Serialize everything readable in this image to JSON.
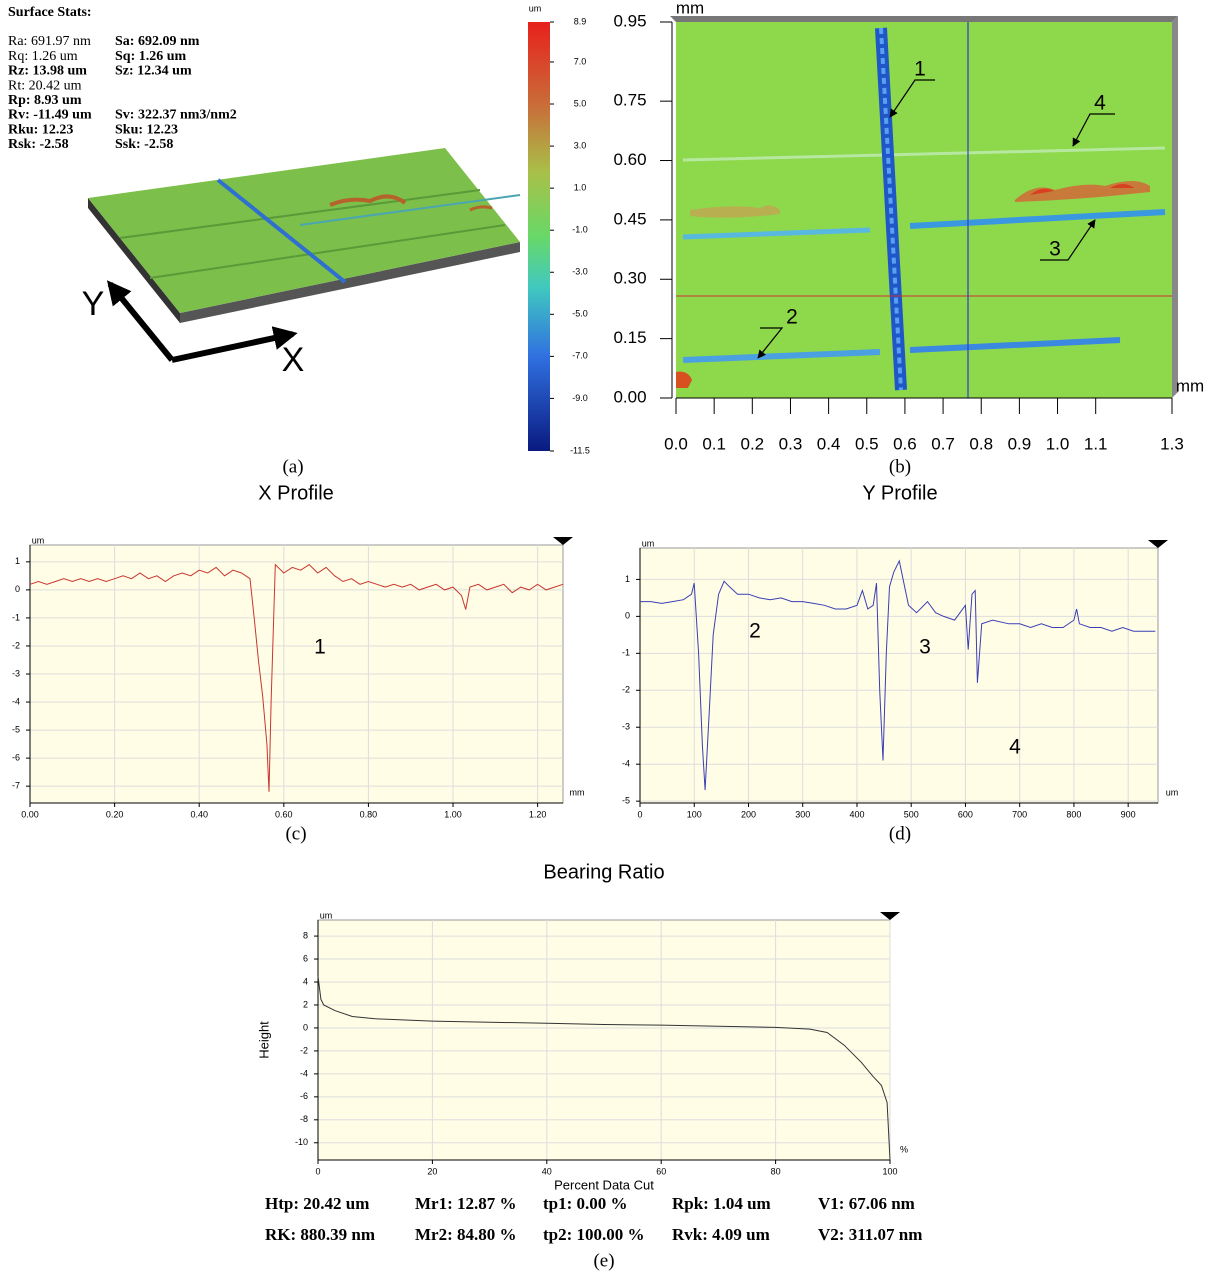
{
  "surface_stats": {
    "title": "Surface Stats:",
    "rows": [
      [
        "Ra: 691.97 nm",
        "Sa: 692.09 nm"
      ],
      [
        "Rq: 1.26 um",
        "Sq: 1.26 um"
      ],
      [
        "Rz: 13.98 um",
        "Sz: 12.34 um"
      ],
      [
        "Rt: 20.42 um"
      ],
      [
        "Rp: 8.93 um"
      ],
      [
        "Rv: -11.49 um",
        "Sv: 322.37 nm3/nm2"
      ],
      [
        "Rku: 12.23",
        "Sku: 12.23"
      ],
      [
        "Rsk: -2.58",
        "Ssk: -2.58"
      ]
    ],
    "axis_labels": [
      "Y",
      "X"
    ],
    "caption": "(a)"
  },
  "colorbar": {
    "unit": "um",
    "lim": [
      -11.5,
      8.9
    ],
    "ticks": [
      8.9,
      {
        "value": 7,
        "label": "7.0"
      },
      {
        "value": 5,
        "label": "5.0"
      },
      {
        "value": 3,
        "label": "3.0"
      },
      {
        "value": 1,
        "label": "1.0"
      },
      {
        "value": -1,
        "label": "-1.0"
      },
      {
        "value": -3,
        "label": "-3.0"
      },
      {
        "value": -5,
        "label": "-5.0"
      },
      {
        "value": -7,
        "label": "-7.0"
      },
      {
        "value": -9,
        "label": "-9.0"
      },
      -11.5
    ]
  },
  "height_map": {
    "x_unit": "mm",
    "y_unit": "mm",
    "xlim": [
      0,
      1.3
    ],
    "ylim": [
      0,
      0.95
    ],
    "xticks": [
      {
        "value": 0,
        "label": "0.0"
      },
      0.1,
      0.2,
      0.3,
      0.4,
      0.5,
      0.6,
      0.7,
      0.8,
      0.9,
      {
        "value": 1,
        "label": "1.0"
      },
      1.1,
      1.3
    ],
    "yticks": [
      {
        "value": 0,
        "label": "0.00"
      },
      0.15,
      {
        "value": 0.3,
        "label": "0.30"
      },
      0.45,
      {
        "value": 0.6,
        "label": "0.60"
      },
      0.75,
      0.95
    ],
    "annotations": [
      "1",
      "2",
      "3",
      "4"
    ],
    "caption": "(b)"
  },
  "chart_data": [
    {
      "type": "line",
      "title": "X Profile",
      "y_unit": "um",
      "x_unit": "mm",
      "color": "#c8362e",
      "grid": true,
      "xlim": [
        0,
        1.26
      ],
      "ylim": [
        -7.6,
        1.6
      ],
      "xticks": [
        {
          "value": 0,
          "label": "0.00"
        },
        {
          "value": 0.2,
          "label": "0.20"
        },
        {
          "value": 0.4,
          "label": "0.40"
        },
        {
          "value": 0.6,
          "label": "0.60"
        },
        {
          "value": 0.8,
          "label": "0.80"
        },
        {
          "value": 1,
          "label": "1.00"
        },
        {
          "value": 1.2,
          "label": "1.20"
        }
      ],
      "yticks": [
        1,
        0,
        -1,
        -2,
        -3,
        -4,
        -5,
        -6,
        -7
      ],
      "x": [
        0,
        0.02,
        0.04,
        0.06,
        0.08,
        0.1,
        0.12,
        0.14,
        0.16,
        0.18,
        0.2,
        0.22,
        0.24,
        0.26,
        0.28,
        0.3,
        0.32,
        0.34,
        0.36,
        0.38,
        0.4,
        0.42,
        0.44,
        0.46,
        0.48,
        0.5,
        0.52,
        0.53,
        0.54,
        0.55,
        0.56,
        0.565,
        0.57,
        0.58,
        0.6,
        0.62,
        0.64,
        0.66,
        0.68,
        0.7,
        0.72,
        0.74,
        0.76,
        0.78,
        0.8,
        0.82,
        0.84,
        0.86,
        0.88,
        0.9,
        0.92,
        0.94,
        0.96,
        0.98,
        1,
        1.02,
        1.03,
        1.04,
        1.06,
        1.08,
        1.1,
        1.12,
        1.14,
        1.16,
        1.18,
        1.2,
        1.22,
        1.24,
        1.26
      ],
      "values": [
        0.2,
        0.3,
        0.2,
        0.3,
        0.4,
        0.3,
        0.4,
        0.3,
        0.4,
        0.3,
        0.4,
        0.5,
        0.4,
        0.6,
        0.4,
        0.5,
        0.3,
        0.5,
        0.6,
        0.5,
        0.7,
        0.6,
        0.8,
        0.5,
        0.7,
        0.6,
        0.4,
        -1,
        -2.5,
        -3.8,
        -5.5,
        -7.2,
        -4,
        0.9,
        0.6,
        0.8,
        0.7,
        0.9,
        0.6,
        0.8,
        0.5,
        0.3,
        0.4,
        0.2,
        0.3,
        0.2,
        0.1,
        0.2,
        0.1,
        0.2,
        0,
        0.1,
        0.2,
        0,
        0.1,
        -0.2,
        -0.7,
        0.1,
        0.2,
        0,
        0.1,
        0.2,
        -0.1,
        0.1,
        0,
        0.2,
        0,
        0.1,
        0.2
      ],
      "annotations": [
        "1"
      ],
      "caption": "(c)"
    },
    {
      "type": "line",
      "title": "Y Profile",
      "y_unit": "um",
      "x_unit": "um",
      "color": "#3a3fb5",
      "grid": true,
      "xlim": [
        0,
        955
      ],
      "ylim": [
        -5.05,
        1.85
      ],
      "xticks": [
        0,
        100,
        200,
        300,
        400,
        500,
        600,
        700,
        800,
        900
      ],
      "yticks": [
        1,
        0,
        -1,
        -2,
        -3,
        -4,
        -5
      ],
      "x": [
        0,
        20,
        40,
        60,
        80,
        95,
        100,
        108,
        115,
        120,
        128,
        135,
        145,
        155,
        165,
        180,
        200,
        220,
        240,
        260,
        280,
        300,
        320,
        340,
        360,
        380,
        400,
        410,
        420,
        430,
        436,
        442,
        448,
        454,
        460,
        468,
        478,
        485,
        495,
        510,
        530,
        545,
        560,
        580,
        600,
        605,
        612,
        618,
        622,
        630,
        650,
        680,
        700,
        720,
        740,
        760,
        780,
        800,
        805,
        810,
        830,
        850,
        870,
        890,
        910,
        930,
        950
      ],
      "values": [
        0.4,
        0.4,
        0.35,
        0.4,
        0.45,
        0.6,
        0.9,
        -1,
        -3.5,
        -4.7,
        -2.5,
        -0.5,
        0.6,
        0.95,
        0.8,
        0.6,
        0.6,
        0.5,
        0.45,
        0.5,
        0.4,
        0.4,
        0.35,
        0.3,
        0.2,
        0.2,
        0.3,
        0.7,
        0.2,
        0.3,
        0.9,
        -2,
        -3.9,
        -1,
        0.8,
        1.2,
        1.5,
        1,
        0.3,
        0.1,
        0.4,
        0.1,
        0,
        -0.1,
        0.3,
        -0.9,
        0.6,
        0.7,
        -1.8,
        -0.2,
        -0.1,
        -0.2,
        -0.2,
        -0.3,
        -0.2,
        -0.3,
        -0.3,
        -0.1,
        0.2,
        -0.2,
        -0.3,
        -0.3,
        -0.4,
        -0.3,
        -0.4,
        -0.4,
        -0.4
      ],
      "annotations": [
        "2",
        "3",
        "4"
      ],
      "caption": "(d)"
    },
    {
      "type": "line",
      "title": "Bearing Ratio",
      "y_unit": "um",
      "x_unit": "%",
      "xlabel": "Percent Data Cut",
      "ylabel": "Height",
      "color": "#333333",
      "grid": true,
      "xlim": [
        0,
        100
      ],
      "ylim": [
        -11.5,
        9.4
      ],
      "xticks": [
        0,
        20,
        40,
        60,
        80,
        100
      ],
      "yticks": [
        8,
        6,
        4,
        2,
        0,
        -2,
        -4,
        -6,
        -8,
        -10
      ],
      "x": [
        0,
        0.5,
        1,
        3,
        6,
        10,
        20,
        30,
        40,
        50,
        60,
        70,
        80,
        86,
        89,
        92,
        95,
        97,
        98.5,
        99.5,
        100
      ],
      "values": [
        4.5,
        2.5,
        2,
        1.5,
        1,
        0.8,
        0.6,
        0.5,
        0.4,
        0.3,
        0.25,
        0.15,
        0.05,
        -0.1,
        -0.4,
        -1.5,
        -3,
        -4.2,
        -5,
        -6.5,
        -11.5
      ],
      "stats": [
        [
          "Htp: 20.42 um",
          "Mr1: 12.87 %",
          "tp1: 0.00 %",
          "Rpk: 1.04 um",
          "V1: 67.06 nm"
        ],
        [
          "RK: 880.39 nm",
          "Mr2: 84.80 %",
          "tp2: 100.00 %",
          "Rvk: 4.09 um",
          "V2: 311.07 nm"
        ]
      ],
      "caption": "(e)"
    }
  ]
}
